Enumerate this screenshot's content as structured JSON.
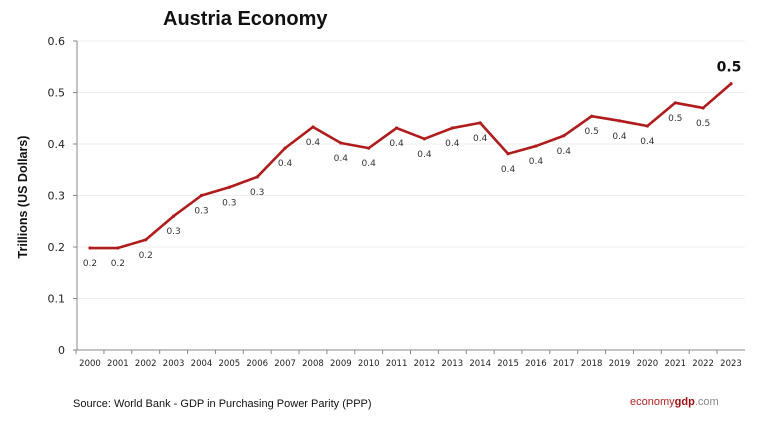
{
  "chart_data": {
    "type": "line",
    "title": "Austria Economy",
    "ylabel": "Trillions (US Dollars)",
    "xlabel": "",
    "ylim": [
      0,
      0.6
    ],
    "yticks": [
      "0",
      "0.1",
      "0.2",
      "0.3",
      "0.4",
      "0.5",
      "0.6"
    ],
    "grid": true,
    "categories": [
      "2000",
      "2001",
      "2002",
      "2003",
      "2004",
      "2005",
      "2006",
      "2007",
      "2008",
      "2009",
      "2010",
      "2011",
      "2012",
      "2013",
      "2014",
      "2015",
      "2016",
      "2017",
      "2018",
      "2019",
      "2020",
      "2021",
      "2022",
      "2023"
    ],
    "values": [
      0.198,
      0.198,
      0.214,
      0.26,
      0.3,
      0.316,
      0.336,
      0.392,
      0.433,
      0.402,
      0.392,
      0.431,
      0.41,
      0.431,
      0.441,
      0.381,
      0.396,
      0.416,
      0.454,
      0.445,
      0.435,
      0.48,
      0.47,
      0.517
    ],
    "data_labels": [
      "0.2",
      "0.2",
      "0.2",
      "0.3",
      "0.3",
      "0.3",
      "0.3",
      "0.4",
      "0.4",
      "0.4",
      "0.4",
      "0.4",
      "0.4",
      "0.4",
      "0.4",
      "0.4",
      "0.4",
      "0.4",
      "0.5",
      "0.4",
      "0.4",
      "0.5",
      "0.5",
      "0.5"
    ],
    "line_color": "#b01c1c"
  },
  "footer": {
    "source": "Source:  World Bank -  GDP  in Purchasing Power Parity (PPP)",
    "brand_part1": "economy",
    "brand_part2": "gdp",
    "brand_part3": ".com"
  }
}
